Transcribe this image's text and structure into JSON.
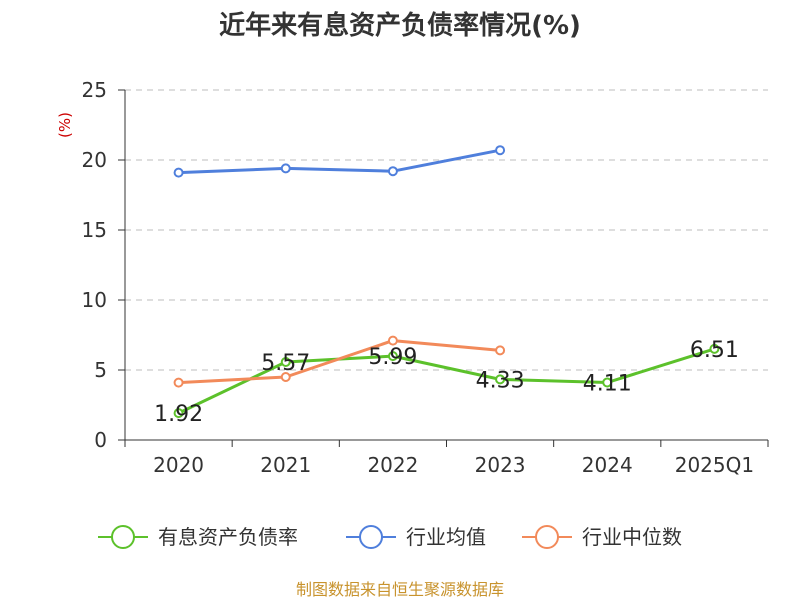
{
  "chart_data": {
    "type": "line",
    "title": "近年来有息资产负债率情况(%)",
    "ylabel": "(%)",
    "xlabel": "",
    "categories": [
      "2020",
      "2021",
      "2022",
      "2023",
      "2024",
      "2025Q1"
    ],
    "ylim": [
      0,
      25
    ],
    "yticks": [
      0,
      5,
      10,
      15,
      20,
      25
    ],
    "grid": true,
    "legend_position": "bottom",
    "series": [
      {
        "name": "有息资产负债率",
        "color": "#5cc12b",
        "values": [
          1.92,
          5.57,
          5.99,
          4.33,
          4.11,
          6.51
        ],
        "labels": [
          "1.92",
          "5.57",
          "5.99",
          "4.33",
          "4.11",
          "6.51"
        ]
      },
      {
        "name": "行业均值",
        "color": "#4f7fdc",
        "values": [
          19.1,
          19.4,
          19.2,
          20.7,
          null,
          null
        ]
      },
      {
        "name": "行业中位数",
        "color": "#f28a5a",
        "values": [
          4.1,
          4.5,
          7.1,
          6.4,
          null,
          null
        ]
      }
    ]
  },
  "footer": {
    "source": "制图数据来自恒生聚源数据库"
  }
}
